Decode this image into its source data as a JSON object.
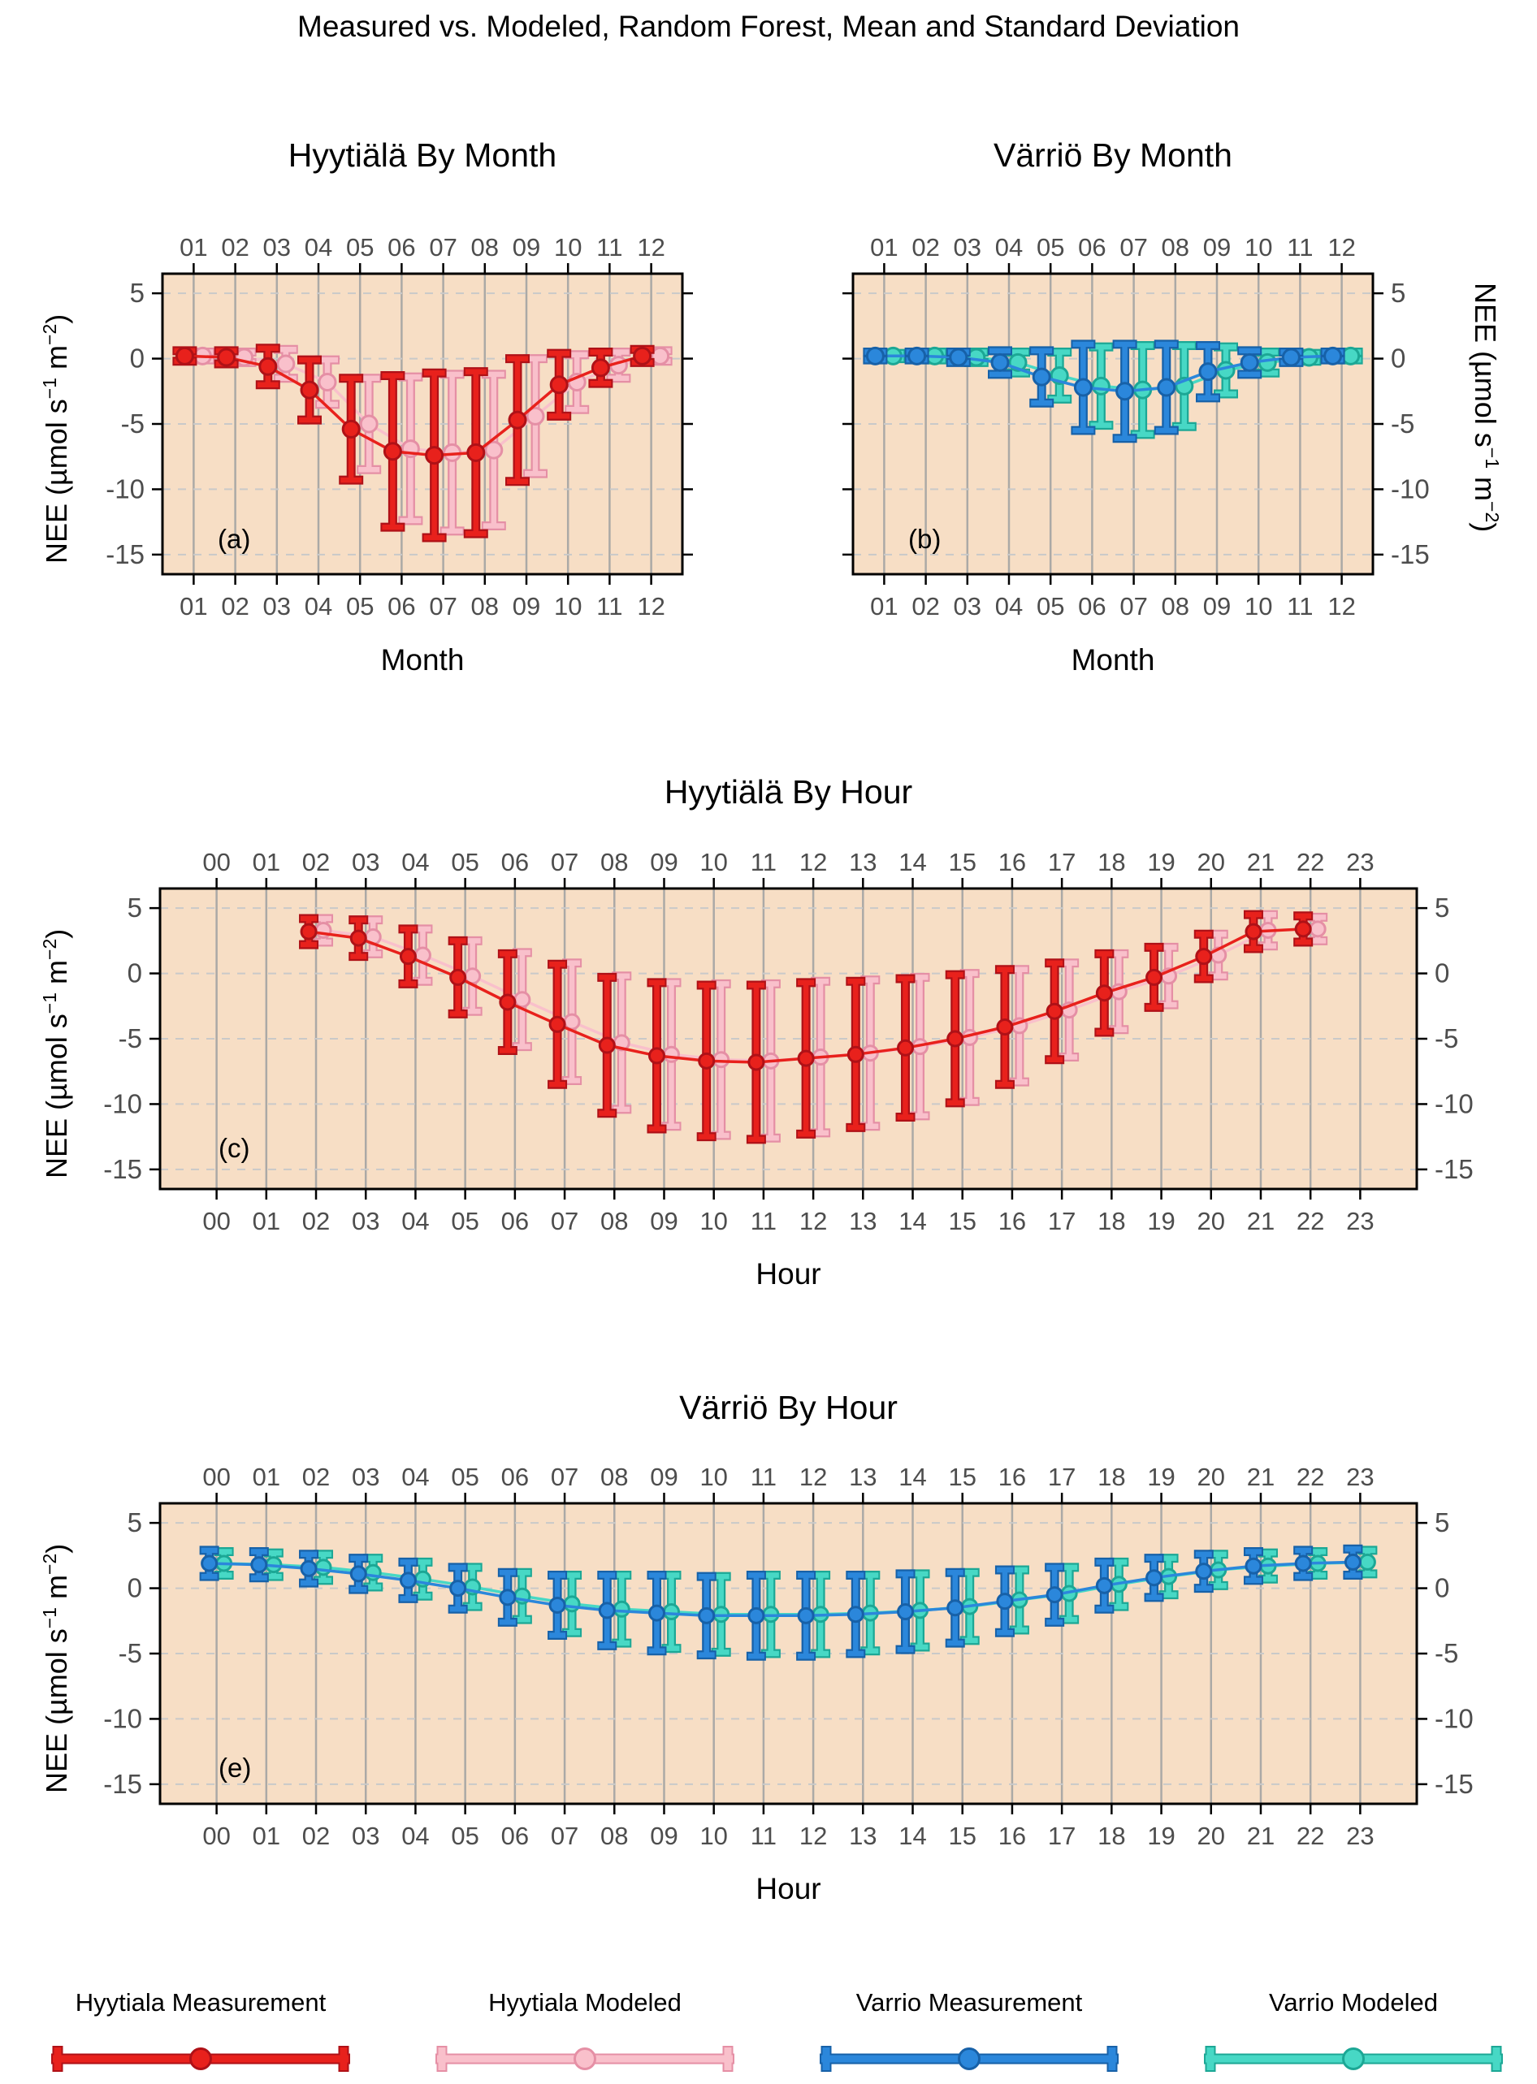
{
  "figure_title": "Measured vs. Modeled, Random Forest, Mean and Standard Deviation",
  "colors": {
    "hyytiala_measurement": "#E8211C",
    "hyytiala_modeled": "#F9C0CB",
    "varrio_measurement": "#2B87DB",
    "varrio_modeled": "#47D8C5",
    "plot_background": "#F7DEC5",
    "grid_vertical": "#ABA9A6",
    "grid_horizontal": "#C9C9C9",
    "tick_label": "#4D4D4D",
    "edges": {
      "hyytiala_measurement": "#AF1117",
      "hyytiala_modeled": "#E58FA5",
      "varrio_measurement": "#1761A8",
      "varrio_modeled": "#1CA795"
    }
  },
  "ylabel_parts": {
    "pre": "NEE (µmol s",
    "sup1": "−1",
    "mid": " m",
    "sup2": "−2",
    "post": ")"
  },
  "legend": {
    "position": "bottom",
    "entries": [
      {
        "label": "Hyytiala Measurement",
        "color_key": "hyytiala_measurement"
      },
      {
        "label": "Hyytiala Modeled",
        "color_key": "hyytiala_modeled"
      },
      {
        "label": "Varrio Measurement",
        "color_key": "varrio_measurement"
      },
      {
        "label": "Varrio Modeled",
        "color_key": "varrio_modeled"
      }
    ]
  },
  "chart_data": [
    {
      "panel_label": "(a)",
      "type": "line",
      "subtype": "errorbar-mean-sd",
      "title": "Hyytiälä By Month",
      "xlabel": "Month",
      "ylabel": "NEE (µmol s⁻¹ m⁻²)",
      "x": [
        "01",
        "02",
        "03",
        "04",
        "05",
        "06",
        "07",
        "08",
        "09",
        "10",
        "11",
        "12"
      ],
      "yticks": [
        5,
        0,
        -5,
        -10,
        -15
      ],
      "ylim": [
        -16.5,
        6.5
      ],
      "y_labels": "left",
      "grid": {
        "vertical": "solid",
        "horizontal": "dashed"
      },
      "series": [
        {
          "name": "Hyytiala Measurement",
          "color_key": "hyytiala_measurement",
          "mean": [
            0.2,
            0.1,
            -0.6,
            -2.4,
            -5.4,
            -7.1,
            -7.4,
            -7.2,
            -4.7,
            -2.0,
            -0.7,
            0.2
          ],
          "sd": [
            0.4,
            0.5,
            1.4,
            2.3,
            3.9,
            5.8,
            6.3,
            6.2,
            4.7,
            2.4,
            1.2,
            0.5
          ]
        },
        {
          "name": "Hyytiala Modeled",
          "color_key": "hyytiala_modeled",
          "mean": [
            0.2,
            0.1,
            -0.4,
            -1.8,
            -5.0,
            -6.9,
            -7.2,
            -7.0,
            -4.4,
            -1.8,
            -0.5,
            0.2
          ],
          "sd": [
            0.3,
            0.4,
            1.1,
            1.7,
            3.5,
            5.5,
            6.0,
            5.8,
            4.4,
            2.1,
            1.0,
            0.4
          ]
        }
      ]
    },
    {
      "panel_label": "(b)",
      "type": "line",
      "subtype": "errorbar-mean-sd",
      "title": "Värriö By Month",
      "xlabel": "Month",
      "ylabel": "NEE (µmol s⁻¹ m⁻²)",
      "x": [
        "01",
        "02",
        "03",
        "04",
        "05",
        "06",
        "07",
        "08",
        "09",
        "10",
        "11",
        "12"
      ],
      "yticks": [
        5,
        0,
        -5,
        -10,
        -15
      ],
      "ylim": [
        -16.5,
        6.5
      ],
      "y_labels": "right",
      "grid": {
        "vertical": "solid",
        "horizontal": "dashed"
      },
      "series": [
        {
          "name": "Varrio Measurement",
          "color_key": "varrio_measurement",
          "mean": [
            0.2,
            0.2,
            0.1,
            -0.3,
            -1.4,
            -2.2,
            -2.5,
            -2.2,
            -1.0,
            -0.3,
            0.1,
            0.2
          ],
          "sd": [
            0.3,
            0.3,
            0.4,
            0.9,
            2.0,
            3.3,
            3.6,
            3.3,
            2.0,
            0.9,
            0.4,
            0.3
          ]
        },
        {
          "name": "Varrio Modeled",
          "color_key": "varrio_modeled",
          "mean": [
            0.2,
            0.2,
            0.1,
            -0.3,
            -1.3,
            -2.1,
            -2.4,
            -2.1,
            -0.9,
            -0.3,
            0.1,
            0.2
          ],
          "sd": [
            0.2,
            0.3,
            0.4,
            0.8,
            1.8,
            3.0,
            3.4,
            3.1,
            1.8,
            0.8,
            0.3,
            0.3
          ]
        }
      ]
    },
    {
      "panel_label": "(c)",
      "type": "line",
      "subtype": "errorbar-mean-sd",
      "title": "Hyytiälä By Hour",
      "xlabel": "Hour",
      "ylabel": "NEE (µmol s⁻¹ m⁻²)",
      "x": [
        "00",
        "01",
        "02",
        "03",
        "04",
        "05",
        "06",
        "07",
        "08",
        "09",
        "10",
        "11",
        "12",
        "13",
        "14",
        "15",
        "16",
        "17",
        "18",
        "19",
        "20",
        "21",
        "22",
        "23"
      ],
      "yticks": [
        5,
        0,
        -5,
        -10,
        -15
      ],
      "ylim": [
        -16.5,
        6.5
      ],
      "y_labels": "both",
      "grid": {
        "vertical": "solid",
        "horizontal": "dashed"
      },
      "series": [
        {
          "name": "Hyytiala Measurement",
          "color_key": "hyytiala_measurement",
          "mean": [
            null,
            null,
            3.2,
            2.7,
            1.3,
            -0.3,
            -2.2,
            -3.9,
            -5.5,
            -6.3,
            -6.7,
            -6.8,
            -6.5,
            -6.2,
            -5.7,
            -5.0,
            -4.1,
            -2.9,
            -1.5,
            -0.3,
            1.3,
            3.2,
            3.4,
            null
          ],
          "sd": [
            null,
            null,
            1.0,
            1.4,
            2.1,
            2.8,
            3.7,
            4.6,
            5.2,
            5.6,
            5.8,
            5.9,
            5.8,
            5.6,
            5.3,
            4.9,
            4.4,
            3.7,
            3.0,
            2.3,
            1.7,
            1.3,
            1.0,
            null
          ]
        },
        {
          "name": "Hyytiala Modeled",
          "color_key": "hyytiala_modeled",
          "mean": [
            null,
            null,
            3.3,
            2.8,
            1.4,
            -0.2,
            -2.0,
            -3.7,
            -5.3,
            -6.2,
            -6.6,
            -6.7,
            -6.4,
            -6.1,
            -5.6,
            -4.9,
            -4.0,
            -2.8,
            -1.4,
            -0.2,
            1.4,
            3.3,
            3.4,
            null
          ],
          "sd": [
            null,
            null,
            0.9,
            1.3,
            2.0,
            2.7,
            3.6,
            4.5,
            5.1,
            5.5,
            5.8,
            5.9,
            5.8,
            5.6,
            5.3,
            4.9,
            4.3,
            3.6,
            2.9,
            2.2,
            1.6,
            1.2,
            0.9,
            null
          ]
        }
      ]
    },
    {
      "panel_label": "(e)",
      "type": "line",
      "subtype": "errorbar-mean-sd",
      "title": "Värriö By Hour",
      "xlabel": "Hour",
      "ylabel": "NEE (µmol s⁻¹ m⁻²)",
      "x": [
        "00",
        "01",
        "02",
        "03",
        "04",
        "05",
        "06",
        "07",
        "08",
        "09",
        "10",
        "11",
        "12",
        "13",
        "14",
        "15",
        "16",
        "17",
        "18",
        "19",
        "20",
        "21",
        "22",
        "23"
      ],
      "yticks": [
        5,
        0,
        -5,
        -10,
        -15
      ],
      "ylim": [
        -16.5,
        6.5
      ],
      "y_labels": "both",
      "grid": {
        "vertical": "solid",
        "horizontal": "dashed"
      },
      "series": [
        {
          "name": "Varrio Measurement",
          "color_key": "varrio_measurement",
          "mean": [
            1.9,
            1.8,
            1.5,
            1.1,
            0.6,
            0.0,
            -0.7,
            -1.3,
            -1.7,
            -1.9,
            -2.1,
            -2.1,
            -2.1,
            -2.0,
            -1.8,
            -1.5,
            -1.0,
            -0.5,
            0.2,
            0.8,
            1.3,
            1.7,
            1.9,
            2.0
          ],
          "sd": [
            1.0,
            1.0,
            1.1,
            1.2,
            1.4,
            1.6,
            1.9,
            2.3,
            2.7,
            2.9,
            3.0,
            3.1,
            3.1,
            3.0,
            2.9,
            2.7,
            2.4,
            2.1,
            1.8,
            1.5,
            1.3,
            1.1,
            1.0,
            1.0
          ]
        },
        {
          "name": "Varrio Modeled",
          "color_key": "varrio_modeled",
          "mean": [
            1.9,
            1.8,
            1.6,
            1.2,
            0.7,
            0.1,
            -0.6,
            -1.2,
            -1.6,
            -1.8,
            -2.0,
            -2.0,
            -2.0,
            -1.9,
            -1.7,
            -1.4,
            -0.9,
            -0.4,
            0.3,
            0.9,
            1.4,
            1.7,
            1.9,
            2.0
          ],
          "sd": [
            0.9,
            0.9,
            1.0,
            1.1,
            1.3,
            1.5,
            1.8,
            2.2,
            2.6,
            2.8,
            2.9,
            3.0,
            3.0,
            2.9,
            2.8,
            2.6,
            2.3,
            2.0,
            1.7,
            1.4,
            1.2,
            1.0,
            0.9,
            0.9
          ]
        }
      ]
    }
  ]
}
